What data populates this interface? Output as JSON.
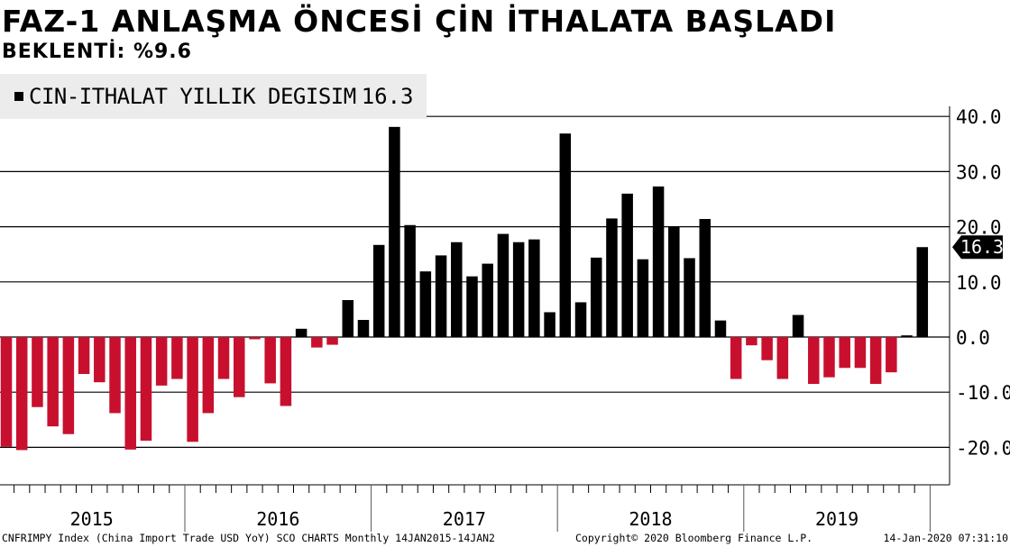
{
  "header": {
    "title": "FAZ-1 ANLAŞMA ÖNCESİ ÇİN İTHALATA BAŞLADI",
    "subtitle": "BEKLENTİ: %9.6"
  },
  "legend": {
    "label": "CIN-ITHALAT YILLIK DEGISIM",
    "value": "16.3"
  },
  "footer": {
    "source": "CNFRIMPY Index (China Import Trade USD YoY) SCO CHARTS  Monthly 14JAN2015-14JAN2",
    "copyright": "Copyright© 2020 Bloomberg Finance L.P.",
    "timestamp": "14-Jan-2020 07:31:10"
  },
  "chart_data": {
    "type": "bar",
    "y_ticks": [
      "40.0",
      "30.0",
      "20.0",
      "10.0",
      "0.0",
      "-10.0",
      "-20.0"
    ],
    "ylim": [
      -26,
      44
    ],
    "last_value_label": "16.3",
    "year_labels": [
      "2015",
      "2016",
      "2017",
      "2018",
      "2019"
    ],
    "colors": {
      "positive": "#000000",
      "negative": "#c8102e"
    },
    "series": [
      {
        "name": "CIN-ITHALAT YILLIK DEGISIM",
        "x": [
          "2015-01",
          "2015-02",
          "2015-03",
          "2015-04",
          "2015-05",
          "2015-06",
          "2015-07",
          "2015-08",
          "2015-09",
          "2015-10",
          "2015-11",
          "2015-12",
          "2016-01",
          "2016-02",
          "2016-03",
          "2016-04",
          "2016-05",
          "2016-06",
          "2016-07",
          "2016-08",
          "2016-09",
          "2016-10",
          "2016-11",
          "2016-12",
          "2017-01",
          "2017-02",
          "2017-03",
          "2017-04",
          "2017-05",
          "2017-06",
          "2017-07",
          "2017-08",
          "2017-09",
          "2017-10",
          "2017-11",
          "2017-12",
          "2018-01",
          "2018-02",
          "2018-03",
          "2018-04",
          "2018-05",
          "2018-06",
          "2018-07",
          "2018-08",
          "2018-09",
          "2018-10",
          "2018-11",
          "2018-12",
          "2019-01",
          "2019-02",
          "2019-03",
          "2019-04",
          "2019-05",
          "2019-06",
          "2019-07",
          "2019-08",
          "2019-09",
          "2019-10",
          "2019-11",
          "2019-12"
        ],
        "values": [
          -19.9,
          -20.5,
          -12.7,
          -16.2,
          -17.6,
          -6.7,
          -8.2,
          -13.8,
          -20.4,
          -18.8,
          -8.8,
          -7.6,
          -19.0,
          -13.8,
          -7.6,
          -10.9,
          -0.4,
          -8.4,
          -12.5,
          1.5,
          -1.9,
          -1.4,
          6.7,
          3.1,
          16.7,
          38.1,
          20.3,
          11.9,
          14.8,
          17.2,
          11.0,
          13.3,
          18.7,
          17.2,
          17.7,
          4.5,
          36.9,
          6.3,
          14.4,
          21.5,
          26.0,
          14.1,
          27.3,
          20.0,
          14.3,
          21.4,
          3.0,
          -7.6,
          -1.5,
          -4.2,
          -7.6,
          4.0,
          -8.5,
          -7.3,
          -5.6,
          -5.6,
          -8.5,
          -6.4,
          0.3,
          16.3
        ]
      }
    ]
  }
}
